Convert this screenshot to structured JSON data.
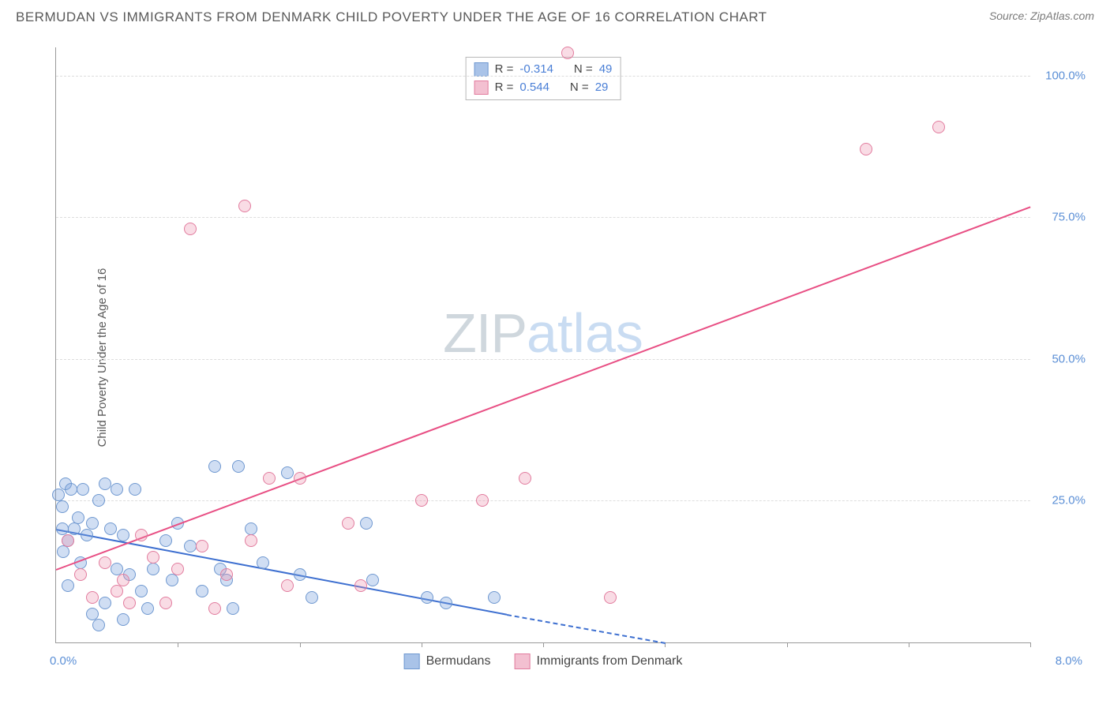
{
  "header": {
    "title": "BERMUDAN VS IMMIGRANTS FROM DENMARK CHILD POVERTY UNDER THE AGE OF 16 CORRELATION CHART",
    "source": "Source: ZipAtlas.com"
  },
  "chart": {
    "type": "scatter",
    "ylabel": "Child Poverty Under the Age of 16",
    "xlim": [
      0,
      8
    ],
    "ylim": [
      0,
      105
    ],
    "yticks": [
      25,
      50,
      75,
      100
    ],
    "ytick_labels": [
      "25.0%",
      "50.0%",
      "75.0%",
      "100.0%"
    ],
    "xtick_positions": [
      1,
      2,
      3,
      4,
      5,
      6,
      7,
      8
    ],
    "x_min_label": "0.0%",
    "x_max_label": "8.0%",
    "background_color": "#ffffff",
    "grid_color": "#dddddd",
    "axis_color": "#999999",
    "tick_label_color": "#5b8fd6",
    "marker_radius": 8,
    "series": [
      {
        "name": "Bermudans",
        "color_fill": "rgba(120,160,220,0.35)",
        "color_stroke": "#6f98d0",
        "swatch_fill": "#a9c3e8",
        "swatch_stroke": "#6f98d0",
        "stats": {
          "r_label": "R =",
          "r_value": "-0.314",
          "n_label": "N =",
          "n_value": "49"
        },
        "trend": {
          "x1": 0,
          "y1": 20,
          "x2": 3.7,
          "y2": 5,
          "color": "#3d6fd0",
          "dash_x2": 5.0,
          "dash_y2": 0
        },
        "points": [
          {
            "x": 0.02,
            "y": 26
          },
          {
            "x": 0.05,
            "y": 24
          },
          {
            "x": 0.08,
            "y": 28
          },
          {
            "x": 0.05,
            "y": 20
          },
          {
            "x": 0.12,
            "y": 27
          },
          {
            "x": 0.15,
            "y": 20
          },
          {
            "x": 0.18,
            "y": 22
          },
          {
            "x": 0.1,
            "y": 18
          },
          {
            "x": 0.22,
            "y": 27
          },
          {
            "x": 0.25,
            "y": 19
          },
          {
            "x": 0.3,
            "y": 21
          },
          {
            "x": 0.35,
            "y": 25
          },
          {
            "x": 0.4,
            "y": 28
          },
          {
            "x": 0.45,
            "y": 20
          },
          {
            "x": 0.5,
            "y": 27
          },
          {
            "x": 0.55,
            "y": 19
          },
          {
            "x": 0.6,
            "y": 12
          },
          {
            "x": 0.65,
            "y": 27
          },
          {
            "x": 0.3,
            "y": 5
          },
          {
            "x": 0.35,
            "y": 3
          },
          {
            "x": 0.4,
            "y": 7
          },
          {
            "x": 0.5,
            "y": 13
          },
          {
            "x": 0.55,
            "y": 4
          },
          {
            "x": 0.7,
            "y": 9
          },
          {
            "x": 0.75,
            "y": 6
          },
          {
            "x": 0.8,
            "y": 13
          },
          {
            "x": 0.9,
            "y": 18
          },
          {
            "x": 0.95,
            "y": 11
          },
          {
            "x": 1.0,
            "y": 21
          },
          {
            "x": 1.1,
            "y": 17
          },
          {
            "x": 1.2,
            "y": 9
          },
          {
            "x": 1.3,
            "y": 31
          },
          {
            "x": 1.35,
            "y": 13
          },
          {
            "x": 1.4,
            "y": 11
          },
          {
            "x": 1.45,
            "y": 6
          },
          {
            "x": 1.5,
            "y": 31
          },
          {
            "x": 1.6,
            "y": 20
          },
          {
            "x": 1.7,
            "y": 14
          },
          {
            "x": 1.9,
            "y": 30
          },
          {
            "x": 2.0,
            "y": 12
          },
          {
            "x": 2.1,
            "y": 8
          },
          {
            "x": 2.55,
            "y": 21
          },
          {
            "x": 2.6,
            "y": 11
          },
          {
            "x": 3.05,
            "y": 8
          },
          {
            "x": 3.2,
            "y": 7
          },
          {
            "x": 3.6,
            "y": 8
          },
          {
            "x": 0.2,
            "y": 14
          },
          {
            "x": 0.1,
            "y": 10
          },
          {
            "x": 0.06,
            "y": 16
          }
        ]
      },
      {
        "name": "Immigrants from Denmark",
        "color_fill": "rgba(235,140,170,0.30)",
        "color_stroke": "#e27c9e",
        "swatch_fill": "#f3c0d1",
        "swatch_stroke": "#e27c9e",
        "stats": {
          "r_label": "R =",
          "r_value": "0.544",
          "n_label": "N =",
          "n_value": "29"
        },
        "trend": {
          "x1": 0,
          "y1": 13,
          "x2": 8,
          "y2": 77,
          "color": "#e84f84"
        },
        "points": [
          {
            "x": 0.1,
            "y": 18
          },
          {
            "x": 0.2,
            "y": 12
          },
          {
            "x": 0.3,
            "y": 8
          },
          {
            "x": 0.4,
            "y": 14
          },
          {
            "x": 0.5,
            "y": 9
          },
          {
            "x": 0.55,
            "y": 11
          },
          {
            "x": 0.6,
            "y": 7
          },
          {
            "x": 0.7,
            "y": 19
          },
          {
            "x": 0.8,
            "y": 15
          },
          {
            "x": 0.9,
            "y": 7
          },
          {
            "x": 1.0,
            "y": 13
          },
          {
            "x": 1.1,
            "y": 73
          },
          {
            "x": 1.2,
            "y": 17
          },
          {
            "x": 1.3,
            "y": 6
          },
          {
            "x": 1.4,
            "y": 12
          },
          {
            "x": 1.55,
            "y": 77
          },
          {
            "x": 1.6,
            "y": 18
          },
          {
            "x": 1.75,
            "y": 29
          },
          {
            "x": 1.9,
            "y": 10
          },
          {
            "x": 2.0,
            "y": 29
          },
          {
            "x": 2.4,
            "y": 21
          },
          {
            "x": 2.5,
            "y": 10
          },
          {
            "x": 3.0,
            "y": 25
          },
          {
            "x": 3.5,
            "y": 25
          },
          {
            "x": 3.85,
            "y": 29
          },
          {
            "x": 4.2,
            "y": 104
          },
          {
            "x": 4.55,
            "y": 8
          },
          {
            "x": 6.65,
            "y": 87
          },
          {
            "x": 7.25,
            "y": 91
          }
        ]
      }
    ],
    "legend": [
      {
        "label": "Bermudans",
        "fill": "#a9c3e8",
        "stroke": "#6f98d0"
      },
      {
        "label": "Immigrants from Denmark",
        "fill": "#f3c0d1",
        "stroke": "#e27c9e"
      }
    ],
    "watermark": {
      "zip": "ZIP",
      "atlas": "atlas"
    }
  }
}
